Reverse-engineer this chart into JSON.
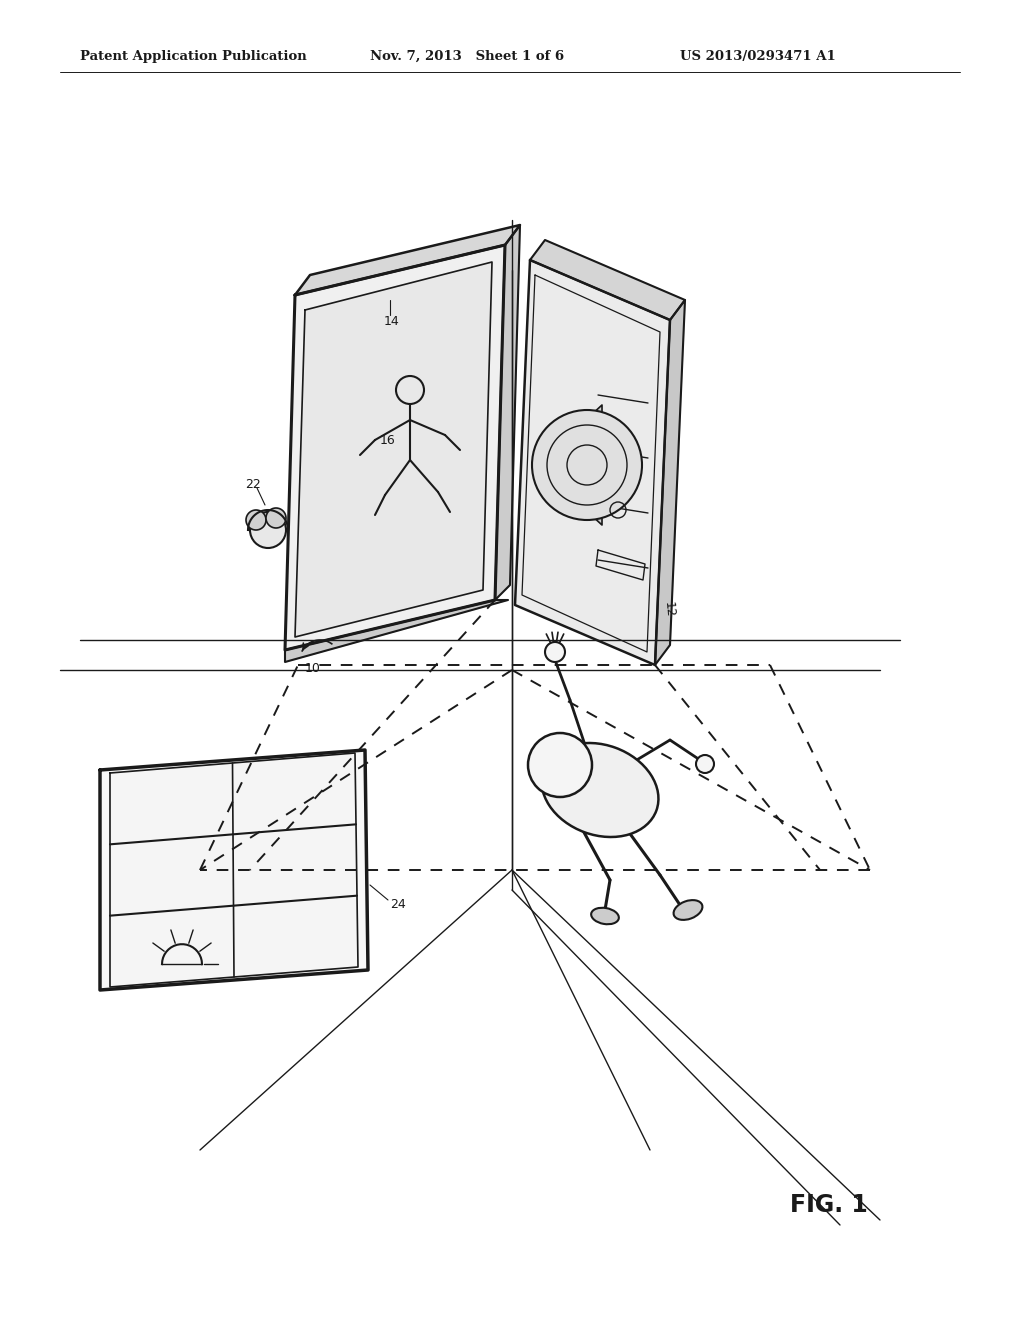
{
  "bg_color": "#ffffff",
  "header_left": "Patent Application Publication",
  "header_mid": "Nov. 7, 2013   Sheet 1 of 6",
  "header_right": "US 2013/0293471 A1",
  "fig_label": "FIG. 1"
}
